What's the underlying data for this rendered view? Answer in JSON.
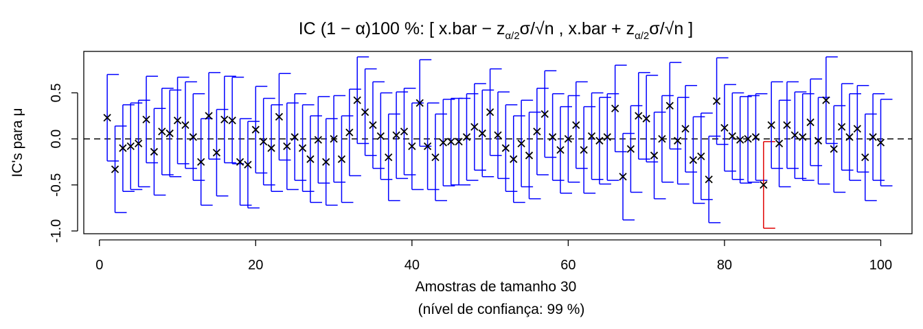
{
  "chart_data": {
    "type": "scatter",
    "title": "IC (1 − α)100 %: [ x.bar − zα/2σ/√n ,  x.bar + zα/2σ/√n ]",
    "title_parts": {
      "prefix": "IC (1 − α)100 %: [ x.bar − z",
      "sub1": "α/2",
      "mid": "σ/√n ,  x.bar + z",
      "sub2": "α/2",
      "end": "σ/√n ]"
    },
    "xlabel": "Amostras de tamanho 30",
    "xlabel2": "(nível de confiança:  99 %)",
    "ylabel": "IC's para μ",
    "xlim": [
      -2,
      104
    ],
    "ylim": [
      -1.03,
      0.95
    ],
    "x_ticks": [
      0,
      20,
      40,
      60,
      80,
      100
    ],
    "y_ticks": [
      -1.0,
      -0.5,
      0.0,
      0.5
    ],
    "y_tick_labels": [
      "-1.0",
      "-0.5",
      "0.0",
      "0.5"
    ],
    "reference_line": 0,
    "half_width": 0.47,
    "interval_color": "#0000ff",
    "miss_color": "#e00000",
    "marker": "x",
    "x": [
      1,
      2,
      3,
      4,
      5,
      6,
      7,
      8,
      9,
      10,
      11,
      12,
      13,
      14,
      15,
      16,
      17,
      18,
      19,
      20,
      21,
      22,
      23,
      24,
      25,
      26,
      27,
      28,
      29,
      30,
      31,
      32,
      33,
      34,
      35,
      36,
      37,
      38,
      39,
      40,
      41,
      42,
      43,
      44,
      45,
      46,
      47,
      48,
      49,
      50,
      51,
      52,
      53,
      54,
      55,
      56,
      57,
      58,
      59,
      60,
      61,
      62,
      63,
      64,
      65,
      66,
      67,
      68,
      69,
      70,
      71,
      72,
      73,
      74,
      75,
      76,
      77,
      78,
      79,
      80,
      81,
      82,
      83,
      84,
      85,
      86,
      87,
      88,
      89,
      90,
      91,
      92,
      93,
      94,
      95,
      96,
      97,
      98,
      99,
      100
    ],
    "means": [
      0.23,
      -0.33,
      -0.1,
      -0.08,
      -0.05,
      0.21,
      -0.14,
      0.08,
      0.06,
      0.2,
      0.15,
      0.02,
      -0.25,
      0.25,
      -0.15,
      0.21,
      0.2,
      -0.25,
      -0.28,
      0.1,
      -0.03,
      -0.1,
      0.24,
      -0.08,
      0.02,
      -0.1,
      -0.22,
      -0.01,
      -0.25,
      0.0,
      -0.22,
      0.07,
      0.42,
      0.29,
      0.15,
      0.03,
      -0.2,
      0.04,
      0.08,
      -0.08,
      0.39,
      -0.08,
      -0.2,
      -0.04,
      -0.03,
      -0.03,
      0.02,
      0.13,
      0.06,
      0.29,
      0.04,
      -0.1,
      -0.22,
      -0.05,
      -0.18,
      0.08,
      0.27,
      0.02,
      -0.12,
      0.0,
      0.15,
      -0.12,
      0.03,
      -0.02,
      0.02,
      0.33,
      -0.41,
      -0.11,
      0.25,
      0.22,
      -0.18,
      0.0,
      0.36,
      -0.02,
      0.11,
      -0.23,
      -0.19,
      -0.44,
      0.41,
      0.12,
      0.03,
      -0.01,
      0.0,
      0.02,
      -0.5,
      0.15,
      -0.05,
      0.15,
      0.04,
      0.02,
      0.18,
      -0.02,
      0.42,
      -0.11,
      0.13,
      0.02,
      0.11,
      -0.2,
      0.02,
      -0.04
    ],
    "misses": [
      85
    ]
  }
}
